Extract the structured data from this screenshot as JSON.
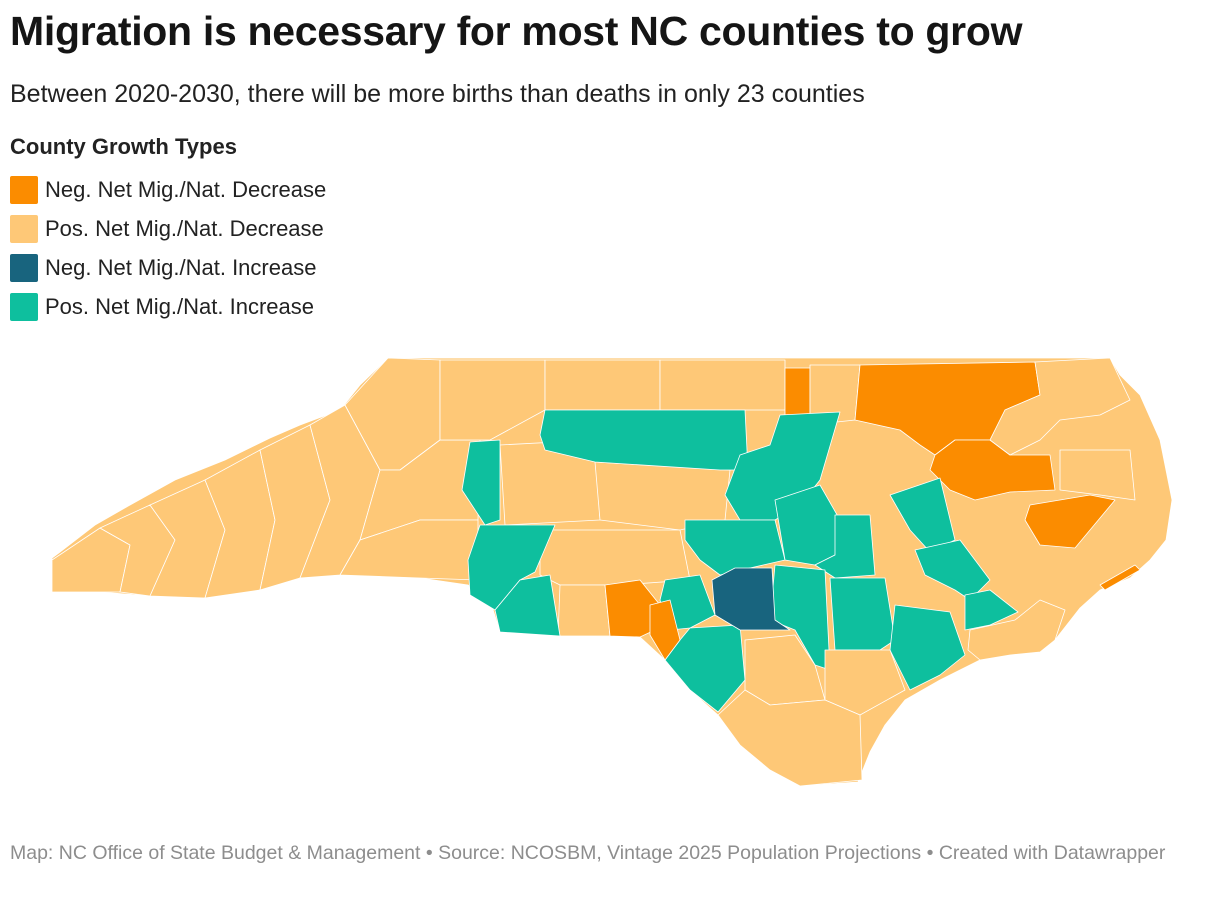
{
  "title": "Migration is necessary for most NC counties to grow",
  "subtitle": "Between 2020-2030, there will be more births than deaths in only 23 counties",
  "legend": {
    "title": "County Growth Types",
    "items": [
      {
        "label": "Neg. Net Mig./Nat. Decrease",
        "color": "#fb8c00"
      },
      {
        "label": "Pos. Net Mig./Nat. Decrease",
        "color": "#fec877"
      },
      {
        "label": "Neg. Net Mig./Nat. Increase",
        "color": "#18647e"
      },
      {
        "label": "Pos. Net Mig./Nat. Increase",
        "color": "#0ebf9e"
      }
    ]
  },
  "map": {
    "region": "North Carolina counties",
    "category_colors": {
      "neg_mig_nat_decrease": "#fb8c00",
      "pos_mig_nat_decrease": "#fec877",
      "neg_mig_nat_increase": "#18647e",
      "pos_mig_nat_increase": "#0ebf9e"
    },
    "coast_color": "#fec877"
  },
  "footer": "Map: NC Office of State Budget & Management • Source: NCOSBM, Vintage 2025 Population Projections • Created with Datawrapper"
}
